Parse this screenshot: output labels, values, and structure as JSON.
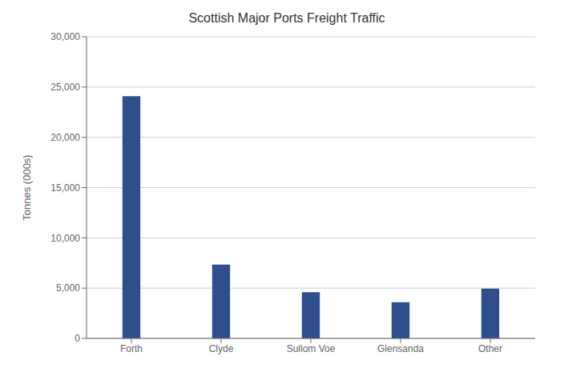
{
  "chart_data": {
    "type": "bar",
    "title": "Scottish Major Ports Freight Traffic",
    "categories": [
      "Forth",
      "Clyde",
      "Sullom Voe",
      "Glensanda",
      "Other"
    ],
    "values": [
      24100,
      7350,
      4600,
      3600,
      4950
    ],
    "color": "#2e4f8c",
    "ylabel": "Tonnes (000s)",
    "ylim": [
      0,
      30000
    ],
    "yticks": [
      0,
      {
        "value": 5000,
        "label": "5,000"
      },
      {
        "value": 10000,
        "label": "10,000"
      },
      {
        "value": 15000,
        "label": "15,000"
      },
      {
        "value": 20000,
        "label": "20,000"
      },
      {
        "value": 25000,
        "label": "25,000"
      },
      {
        "value": 30000,
        "label": "30,000"
      }
    ],
    "grid": true
  }
}
